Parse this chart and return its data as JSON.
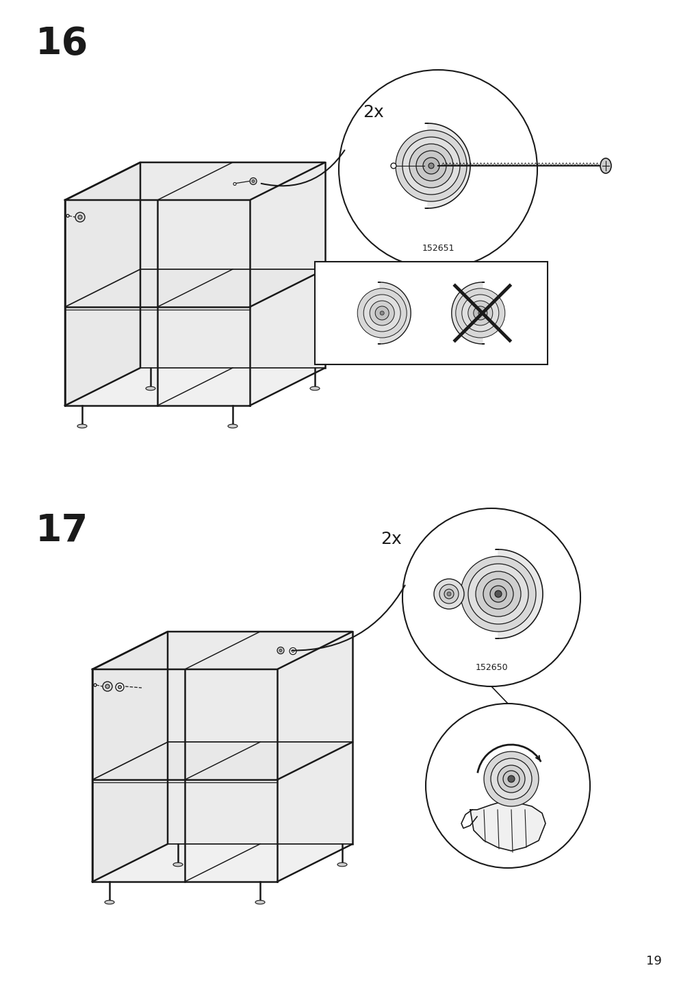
{
  "page_number": "19",
  "step16_label": "16",
  "step17_label": "17",
  "part_number_16": "152651",
  "part_number_17": "152650",
  "count_label": "2x",
  "bg_color": "#ffffff",
  "line_color": "#1a1a1a",
  "fill_side": "#e8e8e8",
  "fill_top": "#f0f0f0",
  "fill_inner": "#f5f5f5",
  "fill_back": "#ebebeb"
}
